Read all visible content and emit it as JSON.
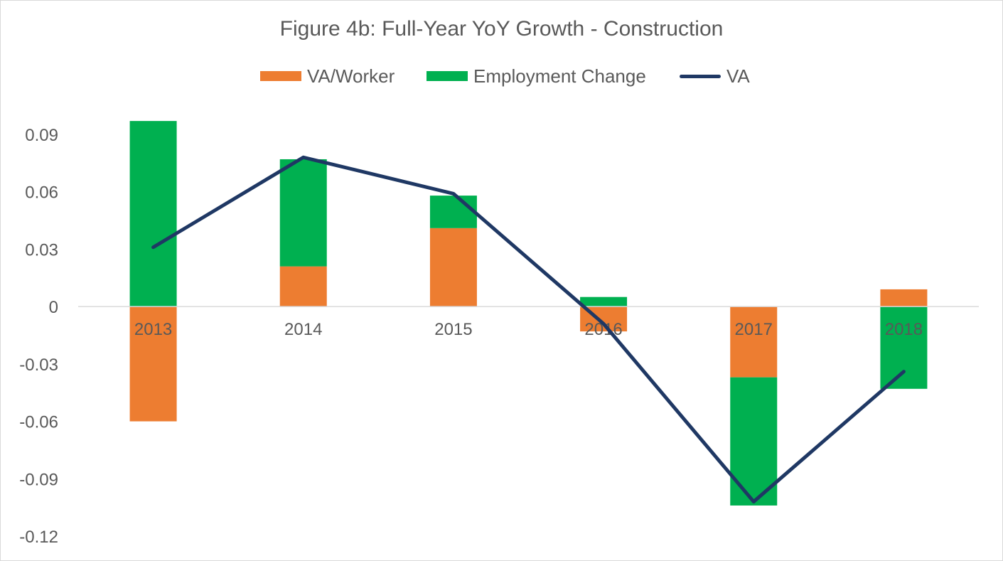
{
  "chart_data": {
    "type": "bar",
    "stacked": true,
    "title": "Figure 4b: Full-Year YoY Growth - Construction",
    "categories": [
      "2013",
      "2014",
      "2015",
      "2016",
      "2017",
      "2018"
    ],
    "series": [
      {
        "name": "VA/Worker",
        "type": "bar",
        "color": "#ed7d31",
        "values": [
          -0.06,
          0.021,
          0.041,
          -0.013,
          -0.037,
          0.009
        ]
      },
      {
        "name": "Employment Change",
        "type": "bar",
        "color": "#00b050",
        "values": [
          0.097,
          0.056,
          0.017,
          0.005,
          -0.067,
          -0.043
        ]
      },
      {
        "name": "VA",
        "type": "line",
        "color": "#1f3864",
        "values": [
          0.031,
          0.078,
          0.059,
          -0.009,
          -0.102,
          -0.034
        ]
      }
    ],
    "y_ticks": [
      "0.09",
      "0.06",
      "0.03",
      "0",
      "-0.03",
      "-0.06",
      "-0.09",
      "-0.12"
    ],
    "ylim": [
      -0.12,
      0.09
    ],
    "xlabel": "",
    "ylabel": "",
    "grid": false,
    "legend_position": "top"
  }
}
